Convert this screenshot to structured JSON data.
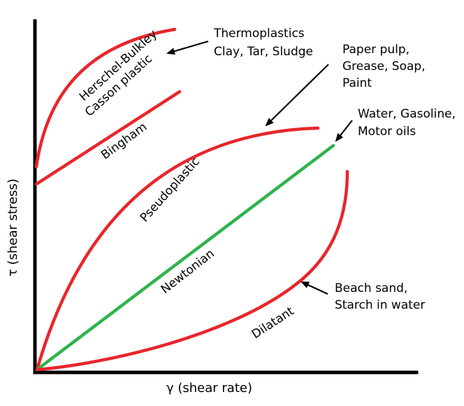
{
  "axes": {
    "x_label": "γ (shear rate)",
    "y_label": "τ (shear stress)"
  },
  "curves": {
    "herschel_bulkley": {
      "label_line1": "Herschel-Bulkley",
      "label_line2": "Casson plastic",
      "color": "#e8262c"
    },
    "bingham": {
      "label": "Bingham",
      "color": "#e8262c"
    },
    "pseudoplastic": {
      "label": "Pseudoplastic",
      "color": "#e8262c"
    },
    "newtonian": {
      "label": "Newtonian",
      "color": "#2db34a"
    },
    "dilatant": {
      "label": "Dilatant",
      "color": "#e8262c"
    }
  },
  "annotations": {
    "thermoplastics": {
      "line1": "Thermoplastics",
      "line2": "Clay, Tar, Sludge"
    },
    "paper_pulp": {
      "line1": "Paper pulp,",
      "line2": "Grease, Soap,",
      "line3": "Paint"
    },
    "water": {
      "line1": "Water, Gasoline,",
      "line2": "Motor oils"
    },
    "beach_sand": {
      "line1": "Beach sand,",
      "line2": "Starch in water"
    }
  }
}
